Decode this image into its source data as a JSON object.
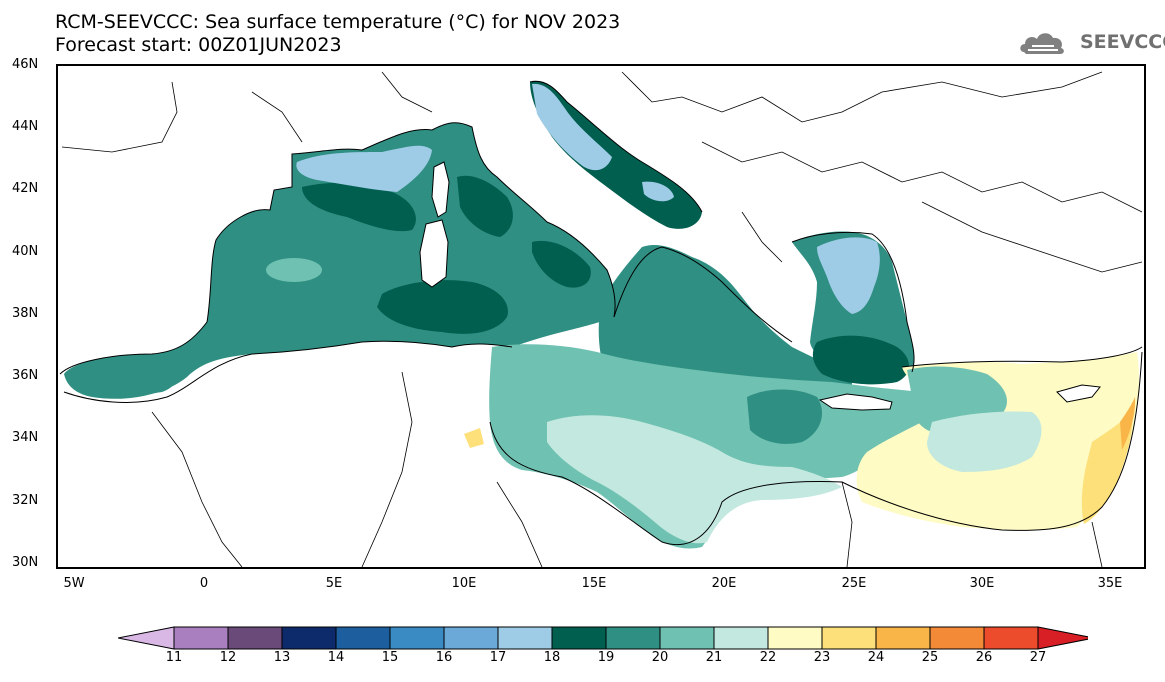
{
  "title": {
    "line1": "RCM-SEEVCCC: Sea surface temperature (°C) for NOV 2023",
    "line2": "Forecast start: 00Z01JUN2023"
  },
  "logo": {
    "text": "SEEVCCC",
    "icon": "cloud-logo-icon"
  },
  "map": {
    "lat_labels": [
      "46N",
      "44N",
      "42N",
      "40N",
      "38N",
      "36N",
      "34N",
      "32N",
      "30N"
    ],
    "lon_labels": [
      "5W",
      "0",
      "5E",
      "10E",
      "15E",
      "20E",
      "25E",
      "30E",
      "35E"
    ]
  },
  "colorbar": {
    "labels": [
      "11",
      "12",
      "13",
      "14",
      "15",
      "16",
      "17",
      "18",
      "19",
      "20",
      "21",
      "22",
      "23",
      "24",
      "25",
      "26",
      "27"
    ],
    "colors": [
      "#d9b8e6",
      "#a97fc0",
      "#6a4a78",
      "#0d2a6b",
      "#1d5f9e",
      "#3a8bc4",
      "#6aa9d8",
      "#9ecbe6",
      "#005f4f",
      "#2f8f82",
      "#6fc1b1",
      "#c3e8df",
      "#fefbc4",
      "#fde07a",
      "#f9b548",
      "#f38a38",
      "#ec4c2c",
      "#d81f26"
    ]
  }
}
